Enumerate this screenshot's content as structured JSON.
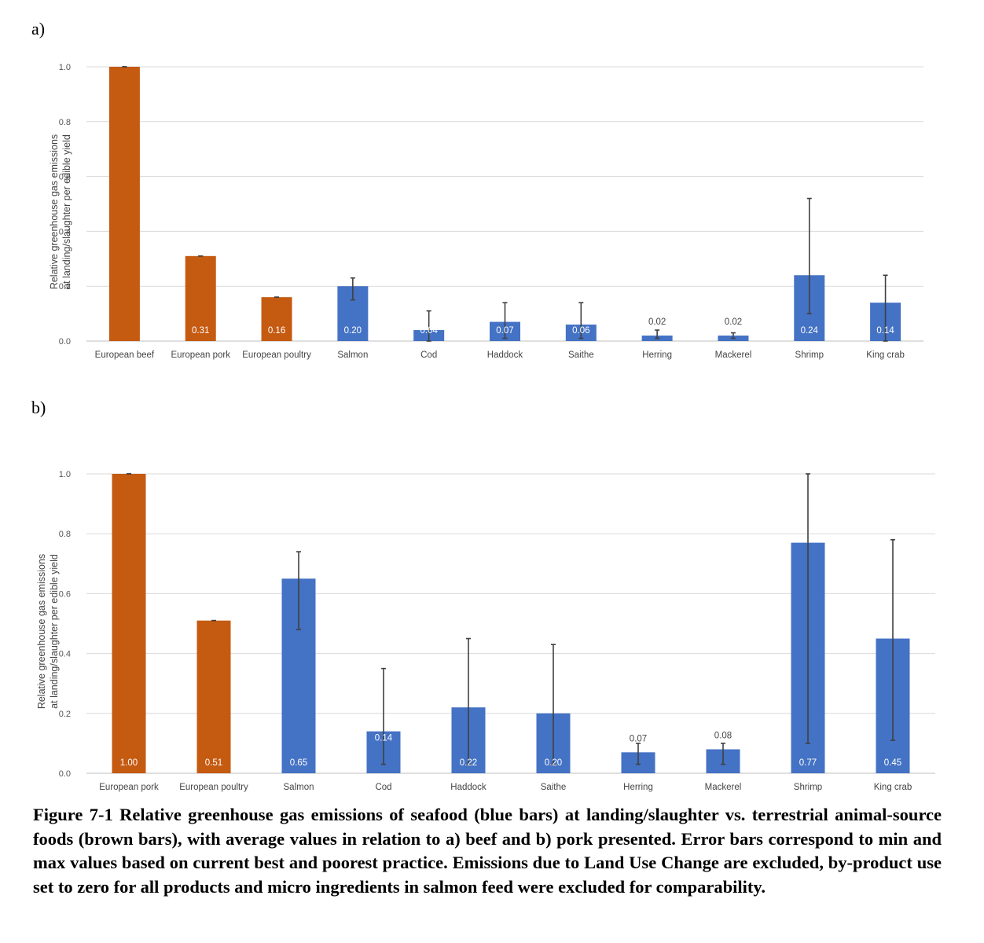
{
  "panels": {
    "a_label": "a)",
    "b_label": "b)"
  },
  "caption": "Figure 7-1 Relative greenhouse gas emissions of seafood (blue bars) at landing/slaughter vs. terrestrial animal-source foods (brown bars), with average values in relation to a)  beef and b) pork presented. Error bars correspond to min and max values based on current best and poorest practice. Emissions due to Land Use Change are excluded, by-product use set to zero for all products and micro ingredients in salmon feed were excluded for comparability.",
  "colors": {
    "terrestrial": "#C55A11",
    "seafood": "#4472C4",
    "error_bar": "#404040",
    "grid": "#D9D9D9"
  },
  "chart_data": [
    {
      "type": "bar",
      "panel": "a)",
      "ylabel_line1": "Relative greenhouse gas emissions",
      "ylabel_line2": "at landing/slaughter per edible yield",
      "ylim": [
        0,
        1.0
      ],
      "yticks": [
        "0.0",
        "0.2",
        "0.4",
        "0.6",
        "0.8",
        "1.0"
      ],
      "grid": true,
      "categories": [
        "European beef",
        "European pork",
        "European poultry",
        "Salmon",
        "Cod",
        "Haddock",
        "Saithe",
        "Herring",
        "Mackerel",
        "Shrimp",
        "King crab"
      ],
      "values": [
        1.0,
        0.31,
        0.16,
        0.2,
        0.04,
        0.07,
        0.06,
        0.02,
        0.02,
        0.24,
        0.14
      ],
      "data_labels": [
        "",
        "0.31",
        "0.16",
        "0.20",
        "0.04",
        "0.07",
        "0.06",
        "0.02",
        "0.02",
        "0.24",
        "0.14"
      ],
      "label_outside": [
        false,
        false,
        false,
        false,
        false,
        false,
        false,
        true,
        true,
        false,
        false
      ],
      "groups": [
        "terrestrial",
        "terrestrial",
        "terrestrial",
        "seafood",
        "seafood",
        "seafood",
        "seafood",
        "seafood",
        "seafood",
        "seafood",
        "seafood"
      ],
      "error_min": [
        1.0,
        0.31,
        0.16,
        0.15,
        0.0,
        0.01,
        0.01,
        0.01,
        0.01,
        0.1,
        0.0
      ],
      "error_max": [
        1.0,
        0.31,
        0.16,
        0.23,
        0.11,
        0.14,
        0.14,
        0.04,
        0.03,
        0.52,
        0.24
      ]
    },
    {
      "type": "bar",
      "panel": "b)",
      "ylabel_line1": "Relative greenhouse gas emissions",
      "ylabel_line2": "at landing/slaughter per edible yield",
      "ylim": [
        0,
        1.0
      ],
      "yticks": [
        "0.0",
        "0.2",
        "0.4",
        "0.6",
        "0.8",
        "1.0"
      ],
      "grid": true,
      "categories": [
        "European pork",
        "European poultry",
        "Salmon",
        "Cod",
        "Haddock",
        "Saithe",
        "Herring",
        "Mackerel",
        "Shrimp",
        "King crab"
      ],
      "values": [
        1.0,
        0.51,
        0.65,
        0.14,
        0.22,
        0.2,
        0.07,
        0.08,
        0.77,
        0.45
      ],
      "data_labels": [
        "1.00",
        "0.51",
        "0.65",
        "0.14",
        "0.22",
        "0.20",
        "0.07",
        "0.08",
        "0.77",
        "0.45"
      ],
      "label_outside": [
        false,
        false,
        false,
        false,
        false,
        false,
        true,
        true,
        false,
        false
      ],
      "label_top": [
        false,
        false,
        false,
        true,
        false,
        false,
        false,
        false,
        false,
        false
      ],
      "groups": [
        "terrestrial",
        "terrestrial",
        "seafood",
        "seafood",
        "seafood",
        "seafood",
        "seafood",
        "seafood",
        "seafood",
        "seafood"
      ],
      "error_min": [
        1.0,
        0.51,
        0.48,
        0.03,
        0.03,
        0.03,
        0.03,
        0.03,
        0.1,
        0.11
      ],
      "error_max": [
        1.0,
        0.51,
        0.74,
        0.35,
        0.45,
        0.43,
        0.1,
        0.1,
        1.0,
        0.78
      ]
    }
  ]
}
